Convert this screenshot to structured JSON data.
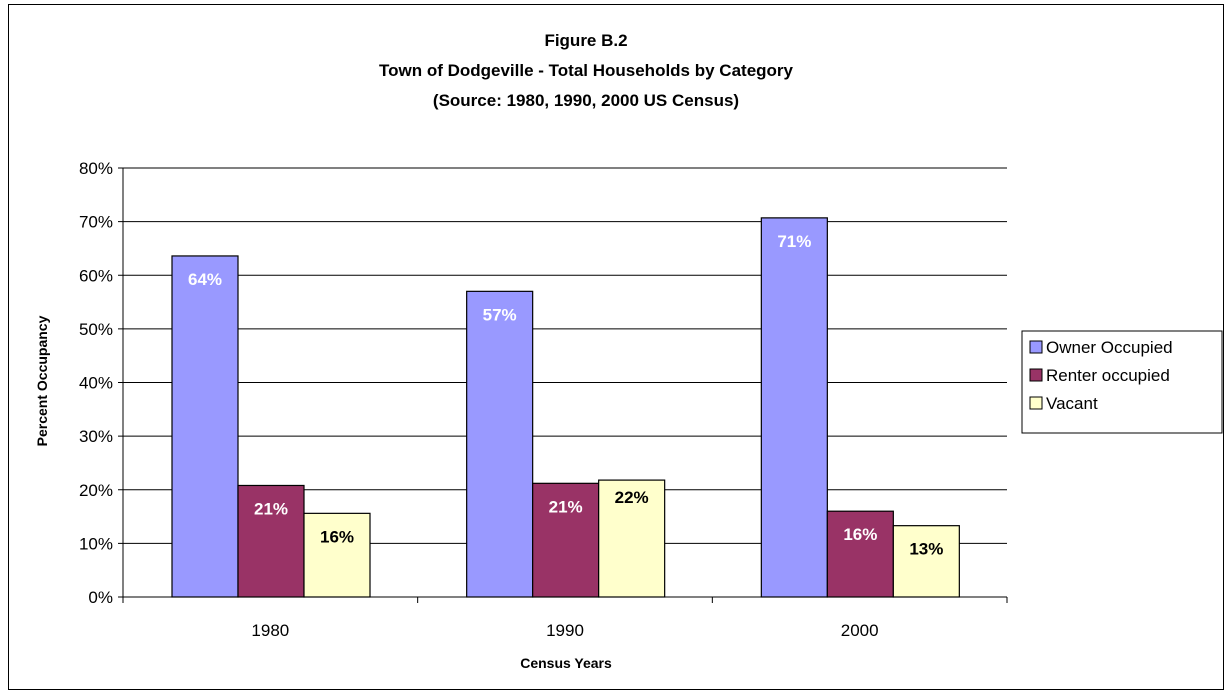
{
  "chart_data": {
    "type": "bar",
    "title_lines": [
      "Figure B.2",
      "Town of Dodgeville -  Total Households by Category",
      "(Source:  1980, 1990, 2000 US Census)"
    ],
    "xlabel": "Census Years",
    "ylabel": "Percent Occupancy",
    "categories": [
      "1980",
      "1990",
      "2000"
    ],
    "ylim": [
      0,
      80
    ],
    "y_ticks": [
      "0%",
      "10%",
      "20%",
      "30%",
      "40%",
      "50%",
      "60%",
      "70%",
      "80%"
    ],
    "grid": true,
    "legend_position": "right",
    "series": [
      {
        "name": "Owner Occupied",
        "color": "#9999ff",
        "label_color": "#ffffff",
        "values": [
          63.6,
          57.0,
          70.7
        ],
        "labels": [
          "64%",
          "57%",
          "71%"
        ]
      },
      {
        "name": "Renter occupied",
        "color": "#993366",
        "label_color": "#ffffff",
        "values": [
          20.8,
          21.2,
          16.0
        ],
        "labels": [
          "21%",
          "21%",
          "16%"
        ]
      },
      {
        "name": "Vacant",
        "color": "#ffffcc",
        "label_color": "#000000",
        "values": [
          15.6,
          21.8,
          13.3
        ],
        "labels": [
          "16%",
          "22%",
          "13%"
        ]
      }
    ]
  }
}
